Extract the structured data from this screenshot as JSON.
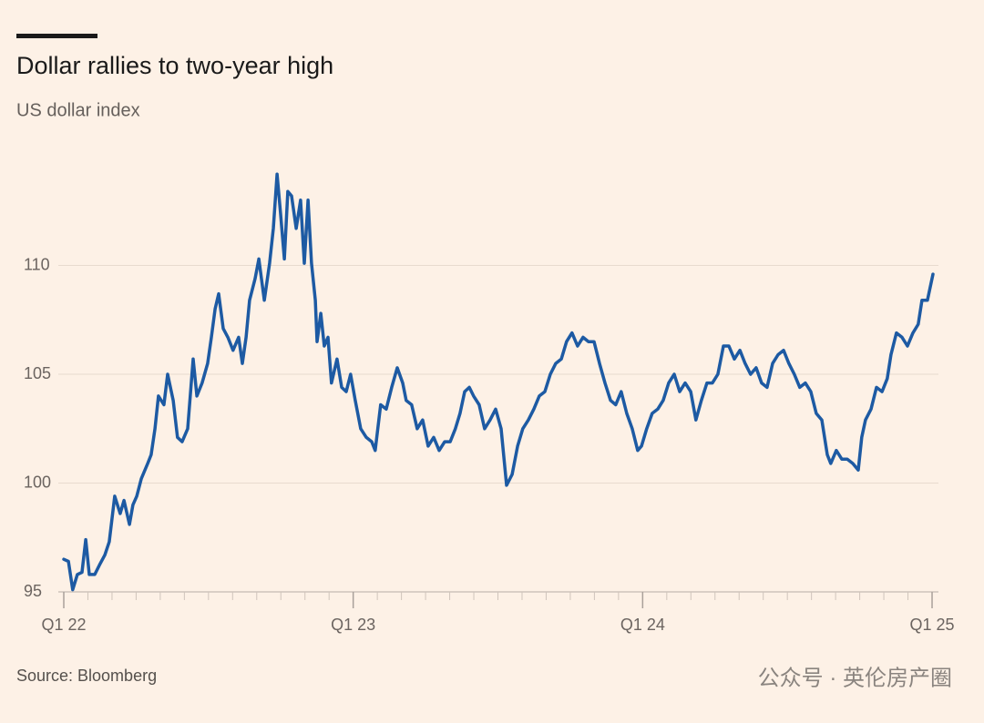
{
  "chart_data": {
    "type": "line",
    "title": "Dollar rallies to two-year high",
    "subtitle": "US dollar index",
    "source": "Source: Bloomberg",
    "watermark": "公众号 · 英伦房产圈",
    "color": "#1d5aa3",
    "grid": true,
    "xlim": [
      2022,
      2025.022
    ],
    "xticks": [
      {
        "value": 2022,
        "label": "Q1 22"
      },
      {
        "value": 2023,
        "label": "Q1 23"
      },
      {
        "value": 2024,
        "label": "Q1 24"
      },
      {
        "value": 2025,
        "label": "Q1 25"
      }
    ],
    "ylim": [
      95,
      114.5
    ],
    "yticks": [
      95,
      100,
      105,
      110
    ],
    "x": [
      2022.0,
      2022.016,
      2022.031,
      2022.047,
      2022.063,
      2022.076,
      2022.088,
      2022.107,
      2022.126,
      2022.142,
      2022.157,
      2022.176,
      2022.195,
      2022.208,
      2022.227,
      2022.239,
      2022.252,
      2022.268,
      2022.29,
      2022.302,
      2022.315,
      2022.327,
      2022.346,
      2022.359,
      2022.378,
      2022.393,
      2022.409,
      2022.428,
      2022.447,
      2022.46,
      2022.478,
      2022.497,
      2022.51,
      2022.523,
      2022.535,
      2022.551,
      2022.567,
      2022.585,
      2022.604,
      2022.617,
      2022.63,
      2022.642,
      2022.661,
      2022.674,
      2022.693,
      2022.711,
      2022.724,
      2022.737,
      2022.749,
      2022.762,
      2022.774,
      2022.787,
      2022.803,
      2022.818,
      2022.831,
      2022.844,
      2022.856,
      2022.869,
      2022.875,
      2022.888,
      2022.9,
      2022.913,
      2022.925,
      2022.944,
      2022.96,
      2022.976,
      2022.991,
      2023.007,
      2023.026,
      2023.045,
      2023.064,
      2023.076,
      2023.095,
      2023.114,
      2023.133,
      2023.152,
      2023.171,
      2023.183,
      2023.202,
      2023.221,
      2023.24,
      2023.259,
      2023.278,
      2023.297,
      2023.316,
      2023.335,
      2023.353,
      2023.369,
      2023.385,
      2023.401,
      2023.416,
      2023.435,
      2023.454,
      2023.473,
      2023.492,
      2023.511,
      2023.53,
      2023.549,
      2023.568,
      2023.586,
      2023.605,
      2023.624,
      2023.643,
      2023.662,
      2023.681,
      2023.7,
      2023.719,
      2023.737,
      2023.756,
      2023.775,
      2023.794,
      2023.813,
      2023.832,
      2023.851,
      2023.87,
      2023.889,
      2023.907,
      2023.926,
      2023.945,
      2023.964,
      2023.983,
      2023.996,
      2024.014,
      2024.033,
      2024.052,
      2024.071,
      2024.09,
      2024.109,
      2024.128,
      2024.147,
      2024.166,
      2024.184,
      2024.203,
      2024.222,
      2024.241,
      2024.26,
      2024.279,
      2024.298,
      2024.317,
      2024.336,
      2024.354,
      2024.373,
      2024.392,
      2024.411,
      2024.43,
      2024.449,
      2024.468,
      2024.487,
      2024.505,
      2024.524,
      2024.543,
      2024.562,
      2024.581,
      2024.6,
      2024.619,
      2024.638,
      2024.65,
      2024.669,
      2024.688,
      2024.707,
      2024.726,
      2024.745,
      2024.757,
      2024.77,
      2024.789,
      2024.808,
      2024.827,
      2024.845,
      2024.858,
      2024.877,
      2024.896,
      2024.915,
      2024.934,
      2024.952,
      2024.965,
      2024.984,
      2025.003
    ],
    "values": [
      96.5,
      96.4,
      95.1,
      95.8,
      95.9,
      97.4,
      95.8,
      95.8,
      96.3,
      96.7,
      97.3,
      99.4,
      98.6,
      99.2,
      98.1,
      99.0,
      99.4,
      100.2,
      100.9,
      101.3,
      102.5,
      104.0,
      103.6,
      105.0,
      103.8,
      102.1,
      101.9,
      102.5,
      105.7,
      104.0,
      104.6,
      105.5,
      106.7,
      108.0,
      108.7,
      107.1,
      106.7,
      106.1,
      106.7,
      105.5,
      106.7,
      108.4,
      109.4,
      110.3,
      108.4,
      110.1,
      111.7,
      114.2,
      112.4,
      110.3,
      113.4,
      113.2,
      111.7,
      113.0,
      110.1,
      113.0,
      110.1,
      108.4,
      106.5,
      107.8,
      106.3,
      106.7,
      104.6,
      105.7,
      104.4,
      104.2,
      105.0,
      103.8,
      102.5,
      102.1,
      101.9,
      101.5,
      103.6,
      103.4,
      104.4,
      105.3,
      104.6,
      103.8,
      103.6,
      102.5,
      102.9,
      101.7,
      102.1,
      101.5,
      101.9,
      101.9,
      102.5,
      103.2,
      104.2,
      104.4,
      104.0,
      103.6,
      102.5,
      102.9,
      103.4,
      102.5,
      99.9,
      100.4,
      101.7,
      102.5,
      102.9,
      103.4,
      104.0,
      104.2,
      105.0,
      105.5,
      105.7,
      106.5,
      106.9,
      106.3,
      106.7,
      106.5,
      106.5,
      105.5,
      104.6,
      103.8,
      103.6,
      104.2,
      103.2,
      102.5,
      101.5,
      101.7,
      102.5,
      103.2,
      103.4,
      103.8,
      104.6,
      105.0,
      104.2,
      104.6,
      104.2,
      102.9,
      103.8,
      104.6,
      104.6,
      105.0,
      106.3,
      106.3,
      105.7,
      106.1,
      105.5,
      105.0,
      105.3,
      104.6,
      104.4,
      105.5,
      105.9,
      106.1,
      105.5,
      105.0,
      104.4,
      104.6,
      104.2,
      103.2,
      102.9,
      101.3,
      100.9,
      101.5,
      101.1,
      101.1,
      100.9,
      100.6,
      102.1,
      102.9,
      103.4,
      104.4,
      104.2,
      104.8,
      105.9,
      106.9,
      106.7,
      106.3,
      106.9,
      107.3,
      108.4,
      108.4,
      109.6
    ]
  }
}
